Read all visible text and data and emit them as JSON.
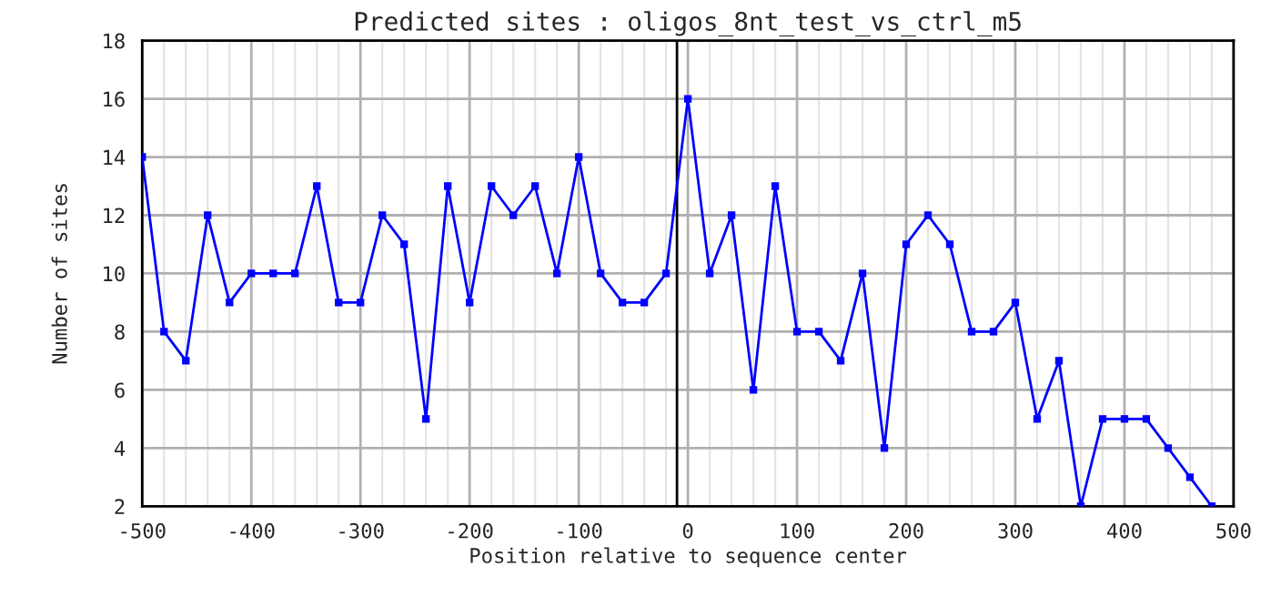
{
  "chart_data": {
    "type": "line",
    "title": "Predicted sites : oligos_8nt_test_vs_ctrl_m5",
    "xlabel": "Position relative to sequence center",
    "ylabel": "Number of sites",
    "x": [
      -500,
      -480,
      -460,
      -440,
      -420,
      -400,
      -380,
      -360,
      -340,
      -320,
      -300,
      -280,
      -260,
      -240,
      -220,
      -200,
      -180,
      -160,
      -140,
      -120,
      -100,
      -80,
      -60,
      -40,
      -20,
      0,
      20,
      40,
      60,
      80,
      100,
      120,
      140,
      160,
      180,
      200,
      220,
      240,
      260,
      280,
      300,
      320,
      340,
      360,
      380,
      400,
      420,
      440,
      460,
      480
    ],
    "series": [
      {
        "color": "#0000ff",
        "values": [
          14,
          8,
          7,
          12,
          9,
          10,
          10,
          10,
          13,
          9,
          9,
          12,
          11,
          5,
          13,
          9,
          13,
          12,
          13,
          10,
          14,
          10,
          9,
          9,
          10,
          16,
          10,
          12,
          6,
          13,
          8,
          8,
          7,
          10,
          4,
          11,
          12,
          11,
          8,
          8,
          9,
          5,
          7,
          2,
          5,
          5,
          5,
          4,
          3,
          2
        ]
      }
    ],
    "xlim": [
      -500,
      500
    ],
    "xticks": [
      -500,
      -400,
      -300,
      -200,
      -100,
      0,
      100,
      200,
      300,
      400,
      500
    ],
    "ylim": [
      2,
      18
    ],
    "yticks": [
      2,
      4,
      6,
      8,
      10,
      12,
      14,
      16,
      18
    ],
    "ref_lines": [
      {
        "axis": "x",
        "value": -10,
        "color": "#000000"
      }
    ],
    "grid": true,
    "marker": "square",
    "line_style": "solid",
    "legend": false
  }
}
